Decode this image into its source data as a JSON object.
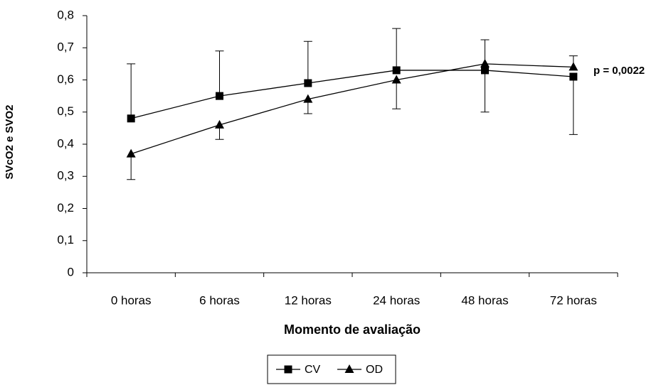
{
  "chart_data": {
    "type": "line",
    "y_label": "SVcO2 e SVO2",
    "x_label": "Momento de avaliação",
    "annotation": "p = 0,0022",
    "categories": [
      "0 horas",
      "6 horas",
      "12 horas",
      "24 horas",
      "48 horas",
      "72 horas"
    ],
    "series": [
      {
        "name": "CV",
        "color": "#000000",
        "marker": "square",
        "values": [
          0.48,
          0.55,
          0.59,
          0.63,
          0.63,
          0.61
        ],
        "errors": [
          0.17,
          0.14,
          0.13,
          0.13,
          0.13,
          0.18
        ],
        "error_direction": [
          "up",
          "up",
          "up",
          "up",
          "down",
          "down"
        ]
      },
      {
        "name": "OD",
        "color": "#000000",
        "marker": "triangle",
        "values": [
          0.37,
          0.46,
          0.54,
          0.6,
          0.65,
          0.64
        ],
        "errors": [
          0.08,
          0.045,
          0.045,
          0.09,
          0.075,
          0.035
        ],
        "error_direction": [
          "down",
          "down",
          "down",
          "down",
          "up",
          "up"
        ]
      }
    ],
    "ylim": [
      0,
      0.8
    ],
    "yticks": [
      0,
      {
        "value": 0.1,
        "label": "0,1"
      },
      {
        "value": 0.2,
        "label": "0,2"
      },
      {
        "value": 0.3,
        "label": "0,3"
      },
      {
        "value": 0.4,
        "label": "0,4"
      },
      {
        "value": 0.5,
        "label": "0,5"
      },
      {
        "value": 0.6,
        "label": "0,6"
      },
      {
        "value": 0.7,
        "label": "0,7"
      },
      {
        "value": 0.8,
        "label": "0,8"
      }
    ],
    "grid": false,
    "legend": "bottom"
  }
}
